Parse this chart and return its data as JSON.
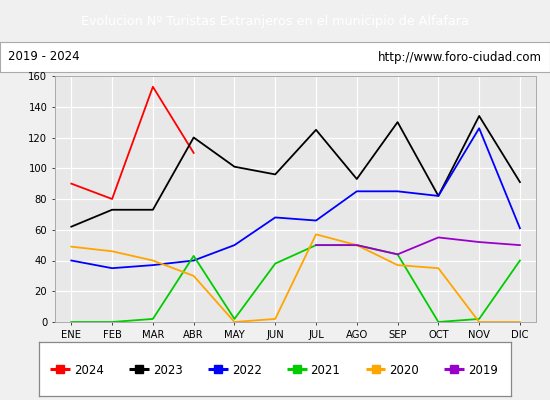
{
  "title": "Evolucion Nº Turistas Extranjeros en el municipio de Alfafara",
  "subtitle_left": "2019 - 2024",
  "subtitle_right": "http://www.foro-ciudad.com",
  "months": [
    "ENE",
    "FEB",
    "MAR",
    "ABR",
    "MAY",
    "JUN",
    "JUL",
    "AGO",
    "SEP",
    "OCT",
    "NOV",
    "DIC"
  ],
  "series": {
    "2024": {
      "color": "#ff0000",
      "data": [
        90,
        80,
        153,
        110,
        null,
        null,
        null,
        null,
        null,
        null,
        null,
        null
      ]
    },
    "2023": {
      "color": "#000000",
      "data": [
        62,
        73,
        73,
        120,
        101,
        96,
        125,
        93,
        130,
        82,
        134,
        91
      ]
    },
    "2022": {
      "color": "#0000ff",
      "data": [
        40,
        35,
        37,
        40,
        50,
        68,
        66,
        85,
        85,
        82,
        126,
        61
      ]
    },
    "2021": {
      "color": "#00cc00",
      "data": [
        0,
        0,
        2,
        43,
        2,
        38,
        50,
        50,
        44,
        0,
        2,
        40
      ]
    },
    "2020": {
      "color": "#ffa500",
      "data": [
        49,
        46,
        40,
        30,
        0,
        2,
        57,
        50,
        37,
        35,
        0,
        0
      ]
    },
    "2019": {
      "color": "#9900cc",
      "data": [
        null,
        null,
        null,
        null,
        null,
        null,
        50,
        50,
        44,
        55,
        52,
        50
      ]
    }
  },
  "years_legend": [
    "2024",
    "2023",
    "2022",
    "2021",
    "2020",
    "2019"
  ],
  "ylim": [
    0,
    160
  ],
  "yticks": [
    0,
    20,
    40,
    60,
    80,
    100,
    120,
    140,
    160
  ],
  "bg_color": "#f0f0f0",
  "plot_bg_color": "#e8e8e8",
  "title_bg_color": "#4f81bd",
  "title_text_color": "#ffffff",
  "subtitle_bg_color": "#ffffff",
  "subtitle_border_color": "#aaaaaa"
}
